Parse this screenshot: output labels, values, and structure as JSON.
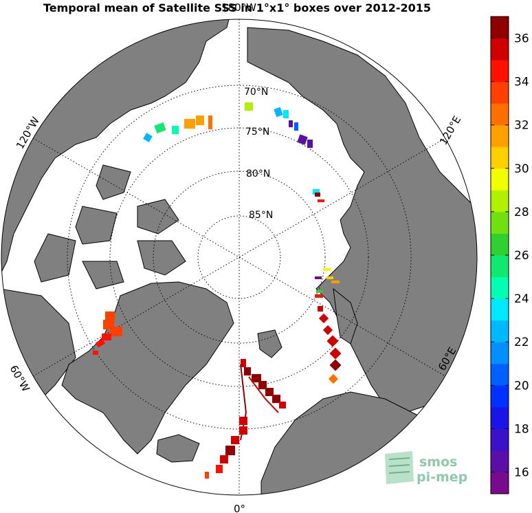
{
  "title": "Temporal mean of Satellite SSS in 1°x1° boxes over 2012-2015",
  "map": {
    "projection": "north-polar-stereographic",
    "longitude_labels": [
      {
        "name": "lon-label-180",
        "text": "180°W"
      },
      {
        "name": "lon-label-120w",
        "text": "120°W"
      },
      {
        "name": "lon-label-120e",
        "text": "120°E"
      },
      {
        "name": "lon-label-60w",
        "text": "60°W"
      },
      {
        "name": "lon-label-60e",
        "text": "60°E"
      },
      {
        "name": "lon-label-0",
        "text": "0°"
      }
    ],
    "latitude_labels": [
      {
        "name": "lat-label-70",
        "text": "70°N"
      },
      {
        "name": "lat-label-75",
        "text": "75°N"
      },
      {
        "name": "lat-label-80",
        "text": "80°N"
      },
      {
        "name": "lat-label-85",
        "text": "85°N"
      }
    ],
    "land_color": "#808080",
    "ocean_color": "#ffffff",
    "sea_ice_color": "#ffffff"
  },
  "colorbar": {
    "min": 15,
    "max": 37,
    "ticks": [
      "16",
      "18",
      "20",
      "22",
      "24",
      "26",
      "28",
      "30",
      "32",
      "34",
      "36"
    ],
    "colors": [
      "#7a0a8c",
      "#5a10a8",
      "#3a12c8",
      "#1a14e8",
      "#0030ff",
      "#0060ff",
      "#0090ff",
      "#00b8ff",
      "#00e8ff",
      "#00ffb0",
      "#10e870",
      "#30d030",
      "#70e010",
      "#b0f000",
      "#f0ff00",
      "#ffd000",
      "#ffa000",
      "#ff7000",
      "#ff4000",
      "#ff1000",
      "#d00000",
      "#900000"
    ]
  },
  "logo": {
    "line1": "smos",
    "line2": "pi-mep"
  }
}
